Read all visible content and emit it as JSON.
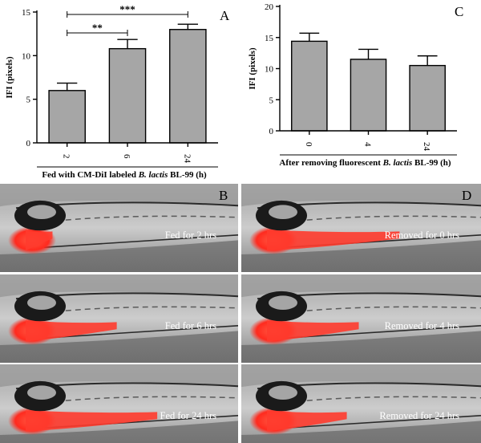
{
  "chart_data": [
    {
      "panel": "A",
      "type": "bar",
      "categories": [
        "2",
        "6",
        "24"
      ],
      "values": [
        6.0,
        10.8,
        13.0
      ],
      "errors": [
        0.85,
        1.05,
        0.6
      ],
      "ylabel": "IFI (pixels)",
      "ylim": [
        0,
        15
      ],
      "yticks": [
        0,
        5,
        10,
        15
      ],
      "xlabel_parts": [
        {
          "text": "Fed with CM-DiI labeled ",
          "italic": false
        },
        {
          "text": "B. lactis",
          "italic": true
        },
        {
          "text": " BL-99   (h)",
          "italic": false
        }
      ],
      "bar_color": "#a6a6a6",
      "significance": [
        {
          "from": 1,
          "to": 2,
          "label": "**"
        },
        {
          "from": 1,
          "to": 3,
          "label": "***"
        }
      ]
    },
    {
      "panel": "C",
      "type": "bar",
      "categories": [
        "0",
        "4",
        "24"
      ],
      "values": [
        14.4,
        11.5,
        10.5
      ],
      "errors": [
        1.3,
        1.6,
        1.55
      ],
      "ylabel": "IFI (pixels)",
      "ylim": [
        0,
        20
      ],
      "yticks": [
        0,
        5,
        10,
        15,
        20
      ],
      "xlabel_parts": [
        {
          "text": "After removing fluorescent ",
          "italic": false
        },
        {
          "text": "B. lactis",
          "italic": true
        },
        {
          "text": " BL-99   (h)",
          "italic": false
        }
      ],
      "bar_color": "#a6a6a6"
    }
  ],
  "images": {
    "B": {
      "letter": "B",
      "captions": [
        "Fed for 2 hrs",
        "Fed for 6 hrs",
        "Fed for 24 hrs"
      ],
      "gut_extent": [
        0.18,
        0.45,
        0.62
      ]
    },
    "D": {
      "letter": "D",
      "captions": [
        "Removed for 0 hrs",
        "Removed for 4 hrs",
        "Removed for 24 hrs"
      ],
      "gut_extent": [
        0.62,
        0.45,
        0.4
      ]
    }
  },
  "colors": {
    "fluorescence": "#ff3b2e",
    "background": "#8a8a8a"
  }
}
